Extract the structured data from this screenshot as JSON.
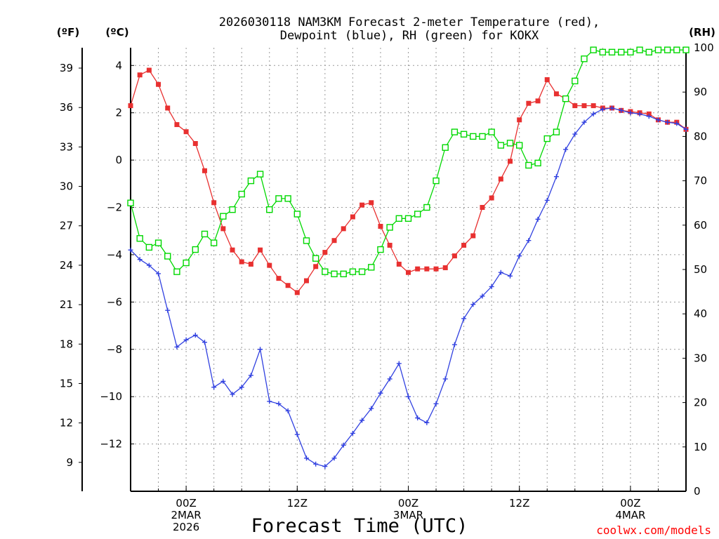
{
  "chart_data": {
    "type": "line",
    "title_lines": [
      "2026030118 NAM3KM Forecast 2-meter Temperature (red),",
      "Dewpoint (blue), RH (green) for KOKX"
    ],
    "xlabel": "Forecast Time (UTC)",
    "credit": "coolwx.com/models",
    "units": {
      "fahrenheit": "(ºF)",
      "celsius": "(ºC)",
      "rh": "(RH)"
    },
    "x_unit": "forecast hours from 2026-03-01 18Z",
    "x_range": [
      0,
      60
    ],
    "celsius_range": [
      -14,
      4.75
    ],
    "rh_range": [
      0,
      100
    ],
    "celsius_ticks": [
      4,
      2,
      0,
      -2,
      -4,
      -6,
      -8,
      -10,
      -12
    ],
    "fahrenheit_ticks": [
      39,
      36,
      33,
      30,
      27,
      24,
      21,
      18,
      15,
      12,
      9
    ],
    "rh_ticks": [
      100,
      90,
      80,
      70,
      60,
      50,
      40,
      30,
      20,
      10,
      0
    ],
    "x_ticks": [
      {
        "hour": 6,
        "lines": [
          "00Z",
          "2MAR",
          "2026"
        ]
      },
      {
        "hour": 18,
        "lines": [
          "12Z"
        ]
      },
      {
        "hour": 30,
        "lines": [
          "00Z",
          "3MAR"
        ]
      },
      {
        "hour": 42,
        "lines": [
          "12Z"
        ]
      },
      {
        "hour": 54,
        "lines": [
          "00Z",
          "4MAR"
        ]
      }
    ],
    "grid": true,
    "series": [
      {
        "name": "2-meter Temperature",
        "axis": "celsius",
        "color": "#e83030",
        "marker": "filled-square",
        "x": [
          0,
          1,
          2,
          3,
          4,
          5,
          6,
          7,
          8,
          9,
          10,
          11,
          12,
          13,
          14,
          15,
          16,
          17,
          18,
          19,
          20,
          21,
          22,
          23,
          24,
          25,
          26,
          27,
          28,
          29,
          30,
          31,
          32,
          33,
          34,
          35,
          36,
          37,
          38,
          39,
          40,
          41,
          42,
          43,
          44,
          45,
          46,
          47,
          48,
          49,
          50,
          51,
          52,
          53,
          54,
          55,
          56,
          57,
          58,
          59,
          60
        ],
        "values": [
          2.3,
          3.6,
          3.8,
          3.2,
          2.2,
          1.5,
          1.2,
          0.7,
          -0.45,
          -1.8,
          -2.9,
          -3.8,
          -4.3,
          -4.4,
          -3.8,
          -4.45,
          -5.0,
          -5.3,
          -5.6,
          -5.1,
          -4.5,
          -3.9,
          -3.4,
          -2.9,
          -2.4,
          -1.9,
          -1.8,
          -2.8,
          -3.6,
          -4.4,
          -4.75,
          -4.6,
          -4.6,
          -4.6,
          -4.55,
          -4.05,
          -3.6,
          -3.2,
          -2.0,
          -1.6,
          -0.8,
          -0.05,
          1.7,
          2.4,
          2.5,
          3.4,
          2.8,
          2.6,
          2.3,
          2.3,
          2.3,
          2.2,
          2.2,
          2.1,
          2.05,
          2.0,
          1.95,
          1.7,
          1.6,
          1.6,
          1.3
        ]
      },
      {
        "name": "Dewpoint",
        "axis": "celsius",
        "color": "#3040e0",
        "marker": "plus",
        "x": [
          0,
          1,
          2,
          3,
          4,
          5,
          6,
          7,
          8,
          9,
          10,
          11,
          12,
          13,
          14,
          15,
          16,
          17,
          18,
          19,
          20,
          21,
          22,
          23,
          24,
          25,
          26,
          27,
          28,
          29,
          30,
          31,
          32,
          33,
          34,
          35,
          36,
          37,
          38,
          39,
          40,
          41,
          42,
          43,
          44,
          45,
          46,
          47,
          48,
          49,
          50,
          51,
          52,
          53,
          54,
          55,
          56,
          57,
          58,
          59,
          60
        ],
        "values": [
          -3.8,
          -4.2,
          -4.45,
          -4.8,
          -6.35,
          -7.9,
          -7.6,
          -7.4,
          -7.7,
          -9.6,
          -9.35,
          -9.9,
          -9.6,
          -9.1,
          -8.0,
          -10.2,
          -10.3,
          -10.6,
          -11.6,
          -12.6,
          -12.85,
          -12.95,
          -12.6,
          -12.05,
          -11.55,
          -11.0,
          -10.5,
          -9.85,
          -9.25,
          -8.6,
          -10.0,
          -10.9,
          -11.1,
          -10.3,
          -9.25,
          -7.8,
          -6.7,
          -6.1,
          -5.75,
          -5.35,
          -4.75,
          -4.9,
          -4.05,
          -3.4,
          -2.5,
          -1.7,
          -0.7,
          0.45,
          1.1,
          1.6,
          1.95,
          2.15,
          2.2,
          2.1,
          2.0,
          1.95,
          1.85,
          1.7,
          1.6,
          1.55,
          1.3
        ]
      },
      {
        "name": "RH",
        "axis": "rh",
        "color": "#00d800",
        "marker": "open-square",
        "x": [
          0,
          1,
          2,
          3,
          4,
          5,
          6,
          7,
          8,
          9,
          10,
          11,
          12,
          13,
          14,
          15,
          16,
          17,
          18,
          19,
          20,
          21,
          22,
          23,
          24,
          25,
          26,
          27,
          28,
          29,
          30,
          31,
          32,
          33,
          34,
          35,
          36,
          37,
          38,
          39,
          40,
          41,
          42,
          43,
          44,
          45,
          46,
          47,
          48,
          49,
          50,
          51,
          52,
          53,
          54,
          55,
          56,
          57,
          58,
          59,
          60
        ],
        "values": [
          65,
          57,
          55,
          56,
          53,
          49.5,
          51.5,
          54.5,
          58,
          56,
          62,
          63.5,
          67,
          70,
          71.5,
          63.5,
          66,
          66,
          62.5,
          56.5,
          52.5,
          49.5,
          49,
          49,
          49.5,
          49.5,
          50.5,
          54.5,
          59.5,
          61.5,
          61.5,
          62.5,
          64,
          70,
          77.5,
          81,
          80.5,
          80,
          80,
          81,
          78,
          78.5,
          78,
          73.5,
          74,
          79.5,
          81,
          88.5,
          92.5,
          97.5,
          99.5,
          99,
          99,
          99,
          99,
          99.5,
          99,
          99.5,
          99.5,
          99.5,
          99.5
        ]
      }
    ]
  }
}
